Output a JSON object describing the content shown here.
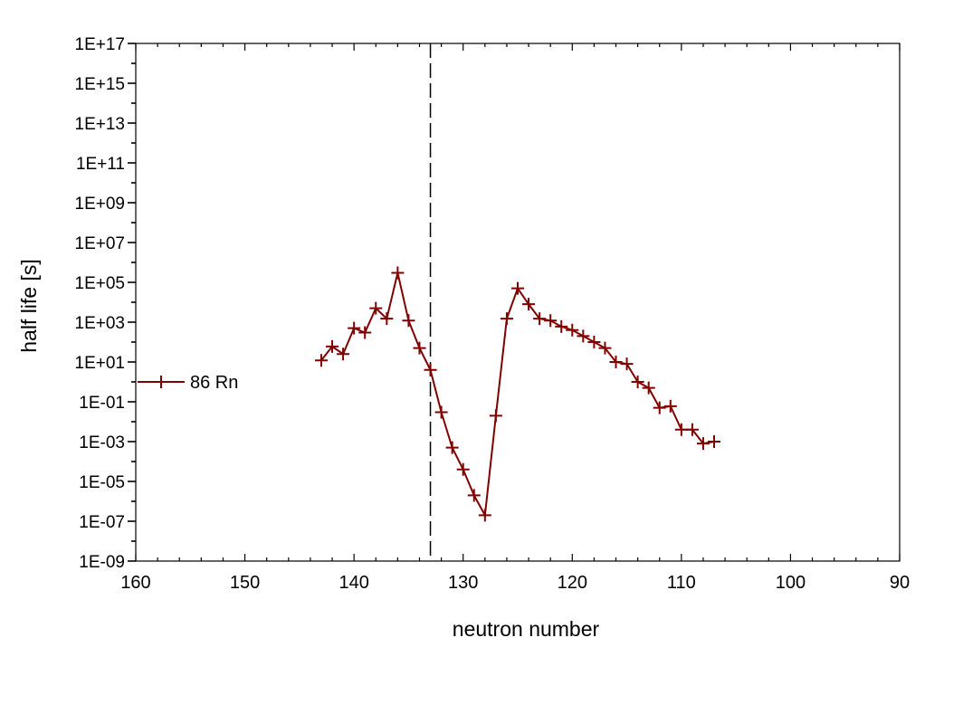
{
  "chart_data": {
    "type": "line",
    "title": "",
    "xlabel": "neutron number",
    "ylabel": "half life [s]",
    "x_reversed": true,
    "xlim": [
      160,
      90
    ],
    "y_scale": "log",
    "ylim": [
      1e-09,
      1e+17
    ],
    "x_ticks": [
      160,
      150,
      140,
      130,
      120,
      110,
      100,
      90
    ],
    "x_tick_labels": [
      "160",
      "150",
      "140",
      "130",
      "120",
      "110",
      "100",
      "90"
    ],
    "y_ticks": [
      1e-09,
      1e-07,
      1e-05,
      0.001,
      0.1,
      10.0,
      1000.0,
      100000.0,
      10000000.0,
      1000000000.0,
      100000000000.0,
      10000000000000.0,
      1000000000000000.0,
      1e+17
    ],
    "y_tick_labels": [
      "1E-09",
      "1E-07",
      "1E-05",
      "1E-03",
      "1E-01",
      "1E+01",
      "1E+03",
      "1E+05",
      "1E+07",
      "1E+09",
      "1E+11",
      "1E+13",
      "1E+15",
      "1E+17"
    ],
    "grid": false,
    "legend_position": "left",
    "reference_line": {
      "x": 133,
      "style": "dashed",
      "color": "#000000"
    },
    "series": [
      {
        "name": "86 Rn",
        "color": "#800000",
        "marker": "plus",
        "x": [
          143,
          142,
          141,
          140,
          139,
          138,
          137,
          136,
          135,
          134,
          133,
          132,
          131,
          130,
          129,
          128,
          127,
          126,
          125,
          124,
          123,
          122,
          121,
          120,
          119,
          118,
          117,
          116,
          115,
          114,
          113,
          112,
          111,
          110,
          109,
          108,
          107
        ],
        "y": [
          12,
          60,
          25,
          500,
          300,
          5000,
          1500,
          300000,
          1200,
          50,
          4,
          0.03,
          0.0005,
          4e-05,
          2e-06,
          2e-07,
          0.02,
          1500,
          50000,
          8000,
          1500,
          1200,
          600,
          400,
          200,
          100,
          50,
          10,
          8,
          1,
          0.5,
          0.05,
          0.06,
          0.004,
          0.004,
          0.0008,
          0.001
        ]
      }
    ]
  }
}
